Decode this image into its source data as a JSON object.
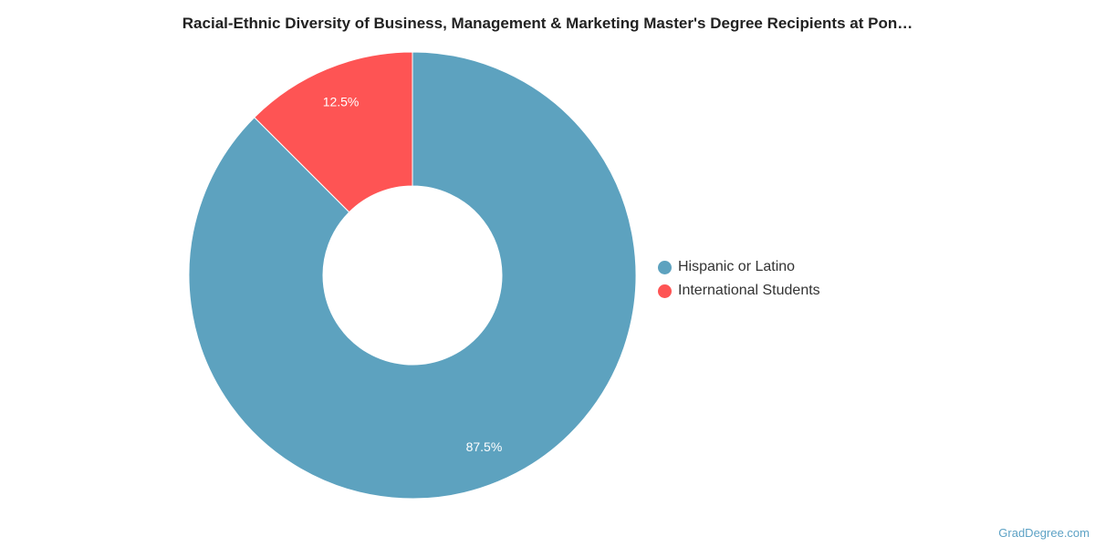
{
  "chart_data": {
    "type": "pie",
    "title": "Racial-Ethnic Diversity of Business, Management & Marketing Master's Degree Recipients at Pon…",
    "donut": true,
    "categories": [
      "Hispanic or Latino",
      "International Students"
    ],
    "values": [
      87.5,
      12.5
    ],
    "data_labels": [
      "87.5%",
      "12.5%"
    ],
    "colors": [
      "#5da2bf",
      "#fe5454"
    ],
    "legend_position": "right"
  },
  "credit": "GradDegree.com"
}
